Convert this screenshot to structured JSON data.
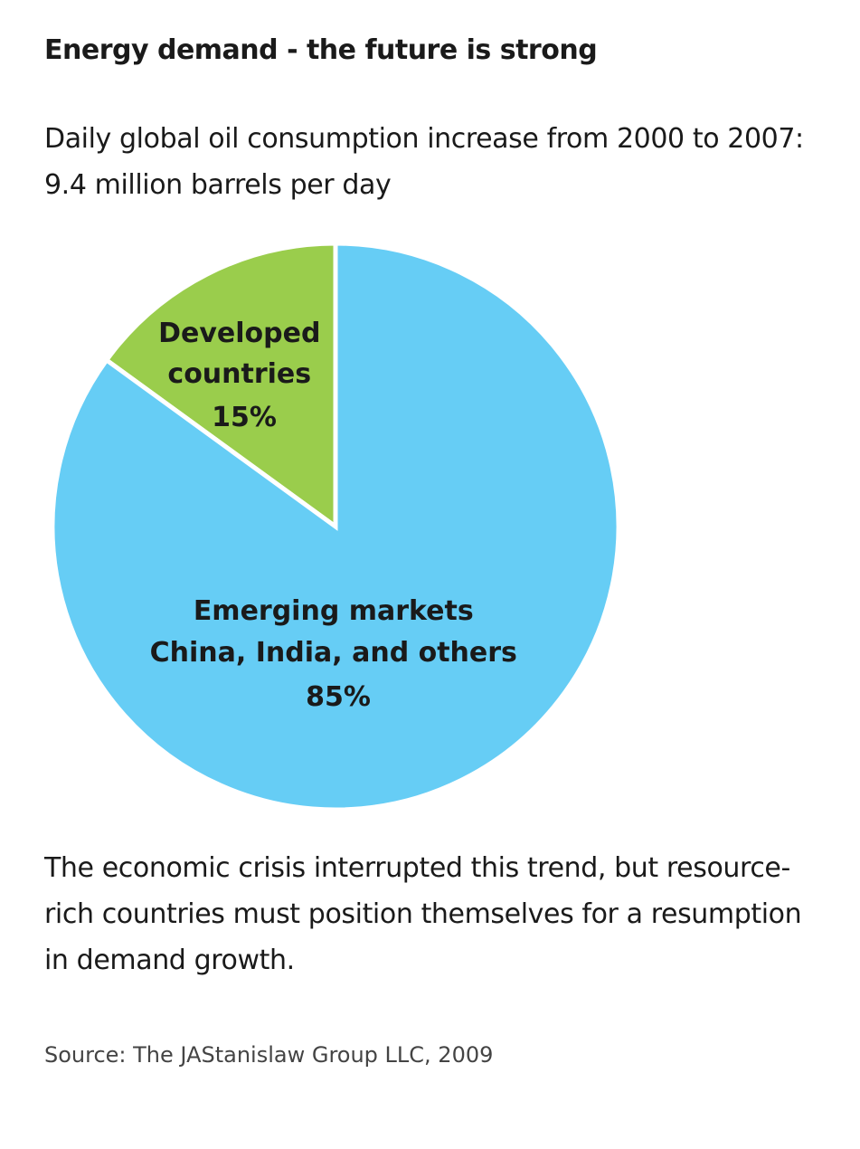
{
  "title": "Energy demand - the future is strong",
  "subtitle_lines": [
    "Daily global oil consumption increase from 2000 to 2007:",
    "9.4 million barrels per day"
  ],
  "chart_data": {
    "type": "pie",
    "slices": [
      {
        "label_lines": [
          "Developed",
          "countries",
          "15%"
        ],
        "value": 15,
        "color": "#9acd4c"
      },
      {
        "label_lines": [
          "Emerging markets",
          "China, India, and others",
          "85%"
        ],
        "value": 85,
        "color": "#66cdf5"
      }
    ]
  },
  "note_lines": [
    "The economic crisis interrupted this trend, but resource-",
    "rich countries must position themselves for a resumption",
    "in demand growth."
  ],
  "source": "Source: The JAStanislaw Group LLC, 2009"
}
